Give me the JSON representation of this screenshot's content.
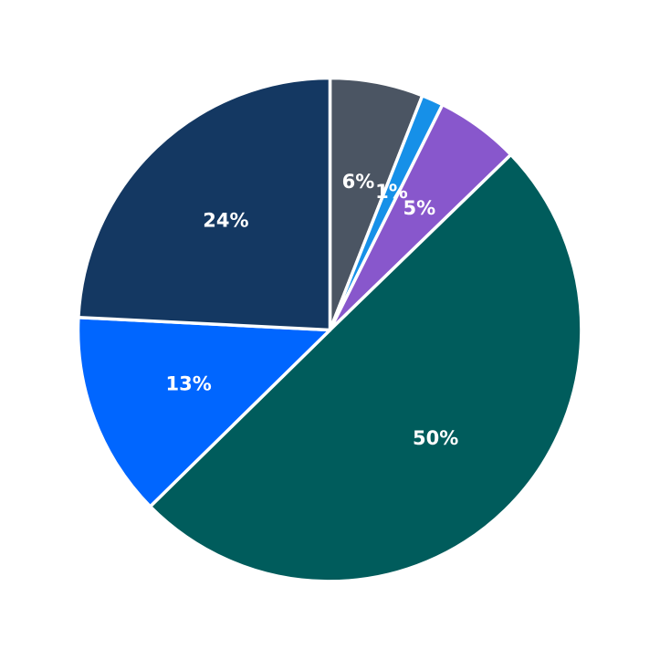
{
  "chart_data": {
    "type": "pie",
    "title": "",
    "start": "top",
    "direction": "clockwise",
    "legend": "none",
    "slices": [
      {
        "label": "6%",
        "value": 6,
        "color": "#4b5563"
      },
      {
        "label": "1%",
        "value": 1.4,
        "color": "#1690e8"
      },
      {
        "label": "5%",
        "value": 5.4,
        "color": "#8857cc"
      },
      {
        "label": "50%",
        "value": 50.1,
        "color": "#005c5c"
      },
      {
        "label": "13%",
        "value": 13.2,
        "color": "#0066ff"
      },
      {
        "label": "24%",
        "value": 24.3,
        "color": "#143862"
      }
    ]
  }
}
